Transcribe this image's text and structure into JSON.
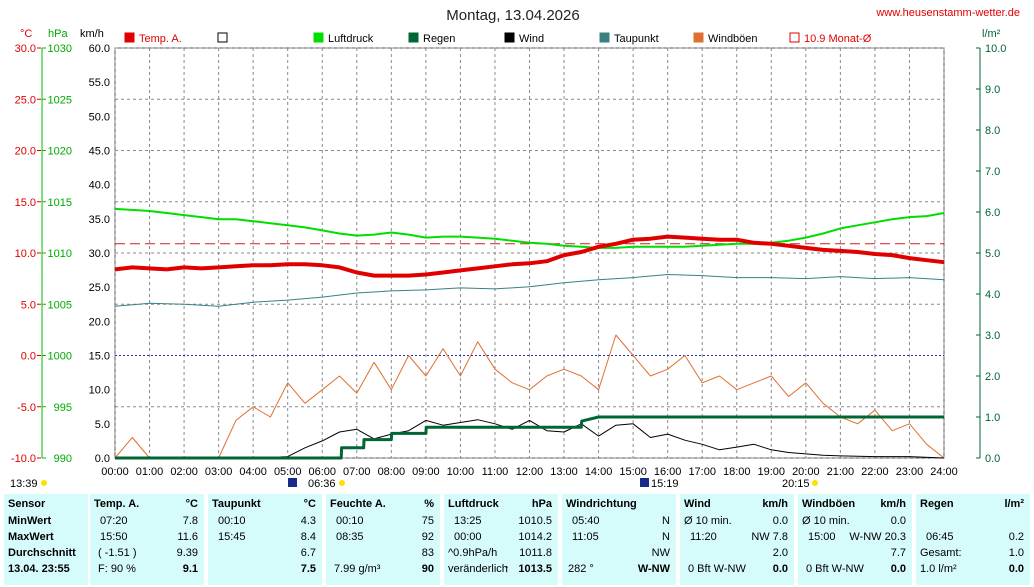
{
  "header": {
    "title": "Montag, 13.04.2026",
    "website": "www.heusenstamm-wetter.de"
  },
  "axes": {
    "temp_unit": "°C",
    "pressure_unit": "hPa",
    "wind_unit": "km/h",
    "rain_unit": "l/m²",
    "temp_ticks": [
      "30.0",
      "25.0",
      "20.0",
      "15.0",
      "10.0",
      "5.0",
      "0.0",
      "-5.0",
      "-10.0"
    ],
    "pressure_ticks": [
      "1030",
      "1025",
      "1020",
      "1015",
      "1010",
      "1005",
      "1000",
      "995",
      "990"
    ],
    "wind_ticks": [
      "60.0",
      "55.0",
      "50.0",
      "45.0",
      "40.0",
      "35.0",
      "30.0",
      "25.0",
      "20.0",
      "15.0",
      "10.0",
      "5.0",
      "0.0"
    ],
    "rain_ticks": [
      "10.0",
      "9.0",
      "8.0",
      "7.0",
      "6.0",
      "5.0",
      "4.0",
      "3.0",
      "2.0",
      "1.0",
      "0.0"
    ],
    "time_ticks": [
      "00:00",
      "01:00",
      "02:00",
      "03:00",
      "04:00",
      "05:00",
      "06:00",
      "07:00",
      "08:00",
      "09:00",
      "10:00",
      "11:00",
      "12:00",
      "13:00",
      "14:00",
      "15:00",
      "16:00",
      "17:00",
      "18:00",
      "19:00",
      "20:00",
      "21:00",
      "22:00",
      "23:00",
      "24:00"
    ]
  },
  "legend": [
    {
      "label": "Temp. A.",
      "color": "#e00000"
    },
    {
      "label": "",
      "color": "#ffffff"
    },
    {
      "label": "Luftdruck",
      "color": "#00dd00"
    },
    {
      "label": "Regen",
      "color": "#006633"
    },
    {
      "label": "Wind",
      "color": "#000000"
    },
    {
      "label": "Taupunkt",
      "color": "#3a8080"
    },
    {
      "label": "Windböen",
      "color": "#e07030"
    },
    {
      "label": "10.9 Monat-Ø",
      "color": "#e00000"
    }
  ],
  "sun": {
    "sunrise": "06:36",
    "sunset": "20:15",
    "sun_hours": "13:39",
    "max_sun": "15:19"
  },
  "chart_data": {
    "type": "line",
    "x_unit": "hours",
    "x_range": [
      0,
      24
    ],
    "ylim_temp": [
      -10,
      30
    ],
    "ylim_pressure": [
      990,
      1030
    ],
    "ylim_wind": [
      0,
      60
    ],
    "ylim_rain": [
      0,
      10
    ],
    "grid": true,
    "month_avg_temp": 10.9,
    "series": [
      {
        "name": "Temp. A.",
        "axis": "temp",
        "color": "#e00000",
        "x": [
          0,
          0.5,
          1,
          1.5,
          2,
          2.5,
          3,
          3.5,
          4,
          4.5,
          5,
          5.5,
          6,
          6.5,
          7,
          7.5,
          8,
          8.5,
          9,
          9.5,
          10,
          10.5,
          11,
          11.5,
          12,
          12.5,
          13,
          13.5,
          14,
          14.5,
          15,
          15.5,
          16,
          16.5,
          17,
          17.5,
          18,
          18.5,
          19,
          19.5,
          20,
          20.5,
          21,
          21.5,
          22,
          22.5,
          23,
          23.5,
          24
        ],
        "y": [
          8.4,
          8.6,
          8.5,
          8.4,
          8.6,
          8.5,
          8.6,
          8.7,
          8.8,
          8.8,
          8.9,
          8.9,
          8.8,
          8.6,
          8.1,
          7.8,
          7.8,
          7.8,
          7.9,
          8.1,
          8.3,
          8.5,
          8.7,
          8.9,
          9.0,
          9.2,
          9.8,
          10.1,
          10.6,
          10.9,
          11.3,
          11.4,
          11.6,
          11.5,
          11.4,
          11.3,
          11.3,
          11.0,
          10.9,
          10.7,
          10.5,
          10.3,
          10.2,
          10.1,
          9.9,
          9.8,
          9.5,
          9.3,
          9.1
        ]
      },
      {
        "name": "Luftdruck",
        "axis": "pressure",
        "color": "#00dd00",
        "x": [
          0,
          0.5,
          1,
          1.5,
          2,
          2.5,
          3,
          3.5,
          4,
          4.5,
          5,
          5.5,
          6,
          6.5,
          7,
          7.5,
          8,
          8.5,
          9,
          9.5,
          10,
          10.5,
          11,
          11.5,
          12,
          12.5,
          13,
          13.5,
          14,
          14.5,
          15,
          15.5,
          16,
          16.5,
          17,
          17.5,
          18,
          18.5,
          19,
          19.5,
          20,
          20.5,
          21,
          21.5,
          22,
          22.5,
          23,
          23.5,
          24
        ],
        "y": [
          1014.3,
          1014.2,
          1014.1,
          1013.9,
          1013.7,
          1013.5,
          1013.3,
          1013.3,
          1013.1,
          1012.9,
          1012.7,
          1012.5,
          1012.2,
          1011.9,
          1011.7,
          1011.8,
          1012.0,
          1011.8,
          1011.5,
          1011.6,
          1011.6,
          1011.5,
          1011.4,
          1011.2,
          1011.0,
          1010.9,
          1010.7,
          1010.6,
          1010.5,
          1010.5,
          1010.6,
          1010.6,
          1010.6,
          1010.6,
          1010.7,
          1010.8,
          1010.9,
          1010.9,
          1011.0,
          1011.2,
          1011.5,
          1011.9,
          1012.4,
          1012.7,
          1013.0,
          1013.3,
          1013.5,
          1013.6,
          1013.9
        ]
      },
      {
        "name": "Taupunkt",
        "axis": "temp",
        "color": "#3a8080",
        "x": [
          0,
          1,
          2,
          3,
          4,
          5,
          6,
          7,
          8,
          9,
          10,
          11,
          12,
          13,
          14,
          15,
          16,
          17,
          18,
          19,
          20,
          21,
          22,
          23,
          24
        ],
        "y": [
          4.8,
          5.1,
          5.0,
          4.8,
          5.2,
          5.4,
          5.7,
          6.1,
          6.3,
          6.4,
          6.6,
          6.5,
          6.7,
          7.1,
          7.4,
          7.6,
          7.9,
          7.8,
          7.6,
          7.6,
          7.5,
          7.7,
          7.5,
          7.6,
          7.4
        ]
      },
      {
        "name": "Regen",
        "axis": "rain",
        "color": "#006633",
        "x": [
          0,
          6.55,
          6.56,
          7.2,
          7.21,
          8.0,
          8.01,
          9.0,
          9.01,
          10.0,
          13.5,
          13.51,
          14.0,
          24
        ],
        "y": [
          0,
          0,
          0.25,
          0.25,
          0.45,
          0.45,
          0.6,
          0.6,
          0.75,
          0.75,
          0.75,
          0.9,
          1.0,
          1.0
        ]
      },
      {
        "name": "Wind",
        "axis": "wind",
        "color": "#000000",
        "x": [
          0,
          1,
          2,
          3,
          4,
          5,
          5.5,
          6,
          6.5,
          7,
          7.5,
          8,
          8.5,
          9,
          9.5,
          10,
          10.5,
          11,
          11.5,
          12,
          12.5,
          13,
          13.5,
          14,
          14.5,
          15,
          15.5,
          16,
          16.5,
          17,
          17.5,
          18,
          18.5,
          19,
          19.5,
          20,
          20.5,
          21,
          22,
          23,
          24
        ],
        "y": [
          0,
          0,
          0,
          0,
          0,
          0.2,
          1.5,
          2.5,
          3.8,
          4.2,
          2.8,
          3.5,
          4.0,
          5.5,
          4.8,
          5.2,
          5.6,
          5.0,
          4.2,
          5.5,
          4.0,
          3.8,
          5.0,
          3.2,
          4.8,
          5.0,
          3.0,
          3.5,
          2.6,
          2.0,
          1.2,
          1.6,
          2.0,
          1.2,
          0.8,
          0.6,
          0.4,
          0.3,
          0.2,
          0.2,
          0
        ]
      },
      {
        "name": "Windböen",
        "axis": "wind",
        "color": "#e07030",
        "x": [
          0,
          0.5,
          1,
          2,
          3,
          3.5,
          4,
          4.5,
          5,
          5.5,
          6,
          6.5,
          7,
          7.5,
          8,
          8.5,
          9,
          9.5,
          10,
          10.5,
          11,
          11.5,
          12,
          12.5,
          13,
          13.5,
          14,
          14.5,
          15,
          15.5,
          16,
          16.5,
          17,
          17.5,
          18,
          18.5,
          19,
          19.5,
          20,
          20.5,
          21,
          21.5,
          22,
          22.5,
          23,
          23.5,
          24
        ],
        "y": [
          0,
          3,
          0,
          0,
          0,
          5.5,
          7.5,
          6,
          11,
          8,
          10,
          12,
          9.5,
          14,
          10,
          15,
          12,
          16,
          12,
          17,
          13,
          11,
          10,
          12,
          13,
          12,
          10,
          18,
          15,
          12,
          13,
          15,
          11,
          12,
          10,
          11,
          12,
          9,
          11,
          8,
          6,
          5,
          7,
          4,
          5,
          2,
          0
        ]
      }
    ]
  },
  "stats": {
    "sensor": {
      "title": "Sensor",
      "rows": [
        "MinWert",
        "MaxWert",
        "Durchschnitt",
        "13.04. 23:55"
      ]
    },
    "temp": {
      "title": "Temp. A.",
      "unit": "°C",
      "min_time": "07:20",
      "min": "7.8",
      "max_time": "15:50",
      "max": "11.6",
      "diff": "( -1.51 )",
      "avg": "9.39",
      "feel": "F: 90 %",
      "current": "9.1"
    },
    "dew": {
      "title": "Taupunkt",
      "unit": "°C",
      "min_time": "00:10",
      "min": "4.3",
      "max_time": "15:45",
      "max": "8.4",
      "avg": "6.7",
      "current": "7.5"
    },
    "humidity": {
      "title": "Feuchte A.",
      "unit": "%",
      "min_time": "00:10",
      "min": "75",
      "max_time": "08:35",
      "max": "92",
      "avg": "83",
      "abs": "7.99 g/m³",
      "current": "90"
    },
    "pressure": {
      "title": "Luftdruck",
      "unit": "hPa",
      "min_time": "13:25",
      "min": "1010.5",
      "max_time": "00:00",
      "max": "1014.2",
      "trend_rate": "^0.9hPa/h",
      "avg": "1011.8",
      "trend_label": "veränderlich",
      "current": "1013.5"
    },
    "winddir": {
      "title": "Windrichtung",
      "min_time": "05:40",
      "min": "N",
      "max_time": "11:05",
      "max": "N",
      "avg": "NW",
      "deg": "282 °",
      "current": "W-NW"
    },
    "wind": {
      "title": "Wind",
      "unit": "km/h",
      "avg_label": "Ø 10 min.",
      "avg10": "0.0",
      "max_time": "11:20",
      "max": "NW 7.8",
      "avg": "2.0",
      "bft": "0 Bft W-NW",
      "current": "0.0"
    },
    "gust": {
      "title": "Windböen",
      "unit": "km/h",
      "avg_label": "Ø 10 min.",
      "avg10": "0.0",
      "max_time": "15:00",
      "max": "W-NW 20.3",
      "avg": "7.7",
      "bft": "0 Bft W-NW",
      "current": "0.0"
    },
    "rain": {
      "title": "Regen",
      "unit": "l/m²",
      "max_time": "06:45",
      "max": "0.2",
      "total_label": "Gesamt:",
      "total": "1.0",
      "rate": "1.0 l/m²",
      "current": "0.0"
    }
  }
}
